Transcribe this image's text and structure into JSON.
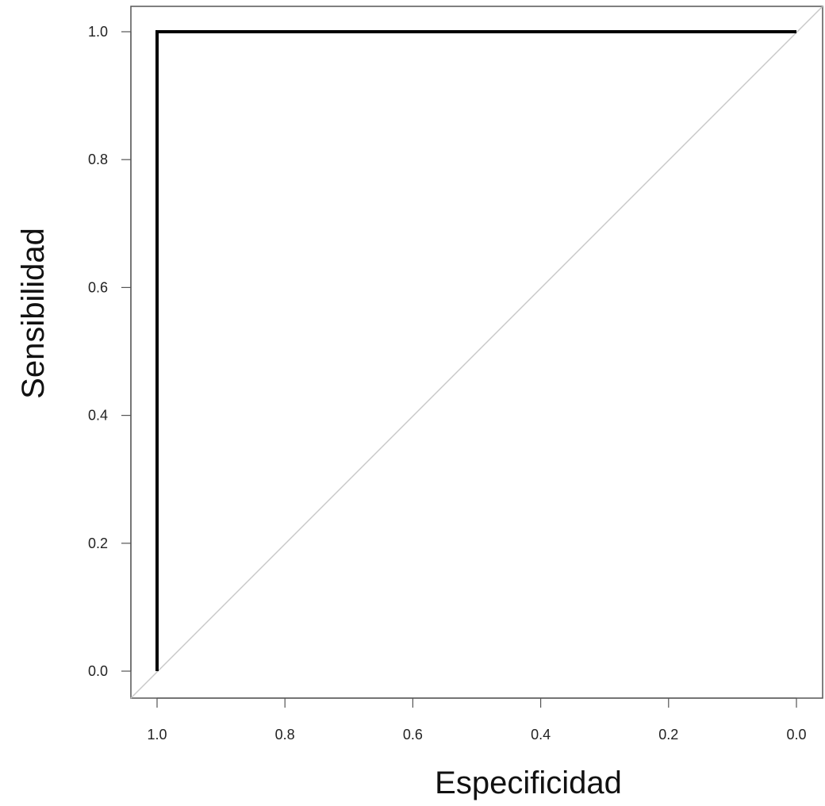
{
  "chart_data": {
    "type": "line",
    "title": "",
    "xlabel": "Especificidad",
    "ylabel": "Sensibilidad",
    "xlim": [
      1.0,
      0.0
    ],
    "ylim": [
      0.0,
      1.0
    ],
    "x_reversed": true,
    "grid": false,
    "legend": "none",
    "x_ticks": [
      "1.0",
      "0.8",
      "0.6",
      "0.4",
      "0.2",
      "0.0"
    ],
    "y_ticks": [
      "0.0",
      "0.2",
      "0.4",
      "0.6",
      "0.8",
      "1.0"
    ],
    "series": [
      {
        "x": [
          1.0,
          1.0,
          0.0
        ],
        "y": [
          0.0,
          1.0,
          1.0
        ],
        "color": "#000000"
      }
    ],
    "reference_line": {
      "x": [
        1.0,
        0.0
      ],
      "y": [
        0.0,
        1.0
      ],
      "color": "#c8c8c8"
    }
  }
}
